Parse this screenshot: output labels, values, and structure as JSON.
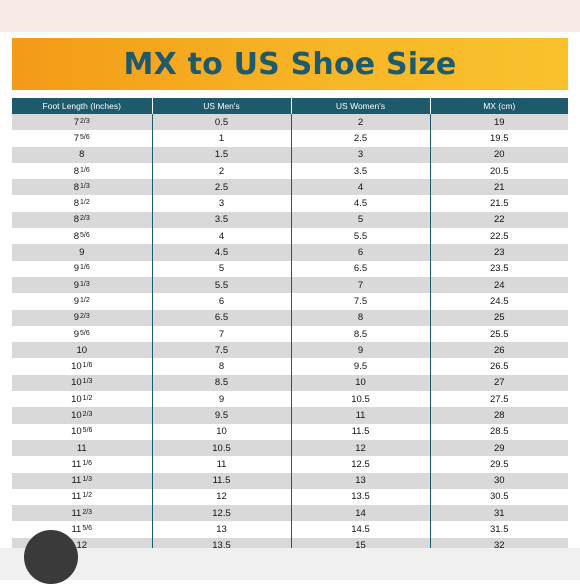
{
  "title": "MX to US Shoe Size",
  "headers": [
    "Foot Length (Inches)",
    "US Men's",
    "US Women's",
    "MX (cm)"
  ],
  "rows": [
    {
      "whole": "7",
      "frac": "2/3",
      "men": "0.5",
      "women": "2",
      "mx": "19"
    },
    {
      "whole": "7",
      "frac": "5/6",
      "men": "1",
      "women": "2.5",
      "mx": "19.5"
    },
    {
      "whole": "8",
      "frac": "",
      "men": "1.5",
      "women": "3",
      "mx": "20"
    },
    {
      "whole": "8",
      "frac": "1/6",
      "men": "2",
      "women": "3.5",
      "mx": "20.5"
    },
    {
      "whole": "8",
      "frac": "1/3",
      "men": "2.5",
      "women": "4",
      "mx": "21"
    },
    {
      "whole": "8",
      "frac": "1/2",
      "men": "3",
      "women": "4.5",
      "mx": "21.5"
    },
    {
      "whole": "8",
      "frac": "2/3",
      "men": "3.5",
      "women": "5",
      "mx": "22"
    },
    {
      "whole": "8",
      "frac": "5/6",
      "men": "4",
      "women": "5.5",
      "mx": "22.5"
    },
    {
      "whole": "9",
      "frac": "",
      "men": "4.5",
      "women": "6",
      "mx": "23"
    },
    {
      "whole": "9",
      "frac": "1/6",
      "men": "5",
      "women": "6.5",
      "mx": "23.5"
    },
    {
      "whole": "9",
      "frac": "1/3",
      "men": "5.5",
      "women": "7",
      "mx": "24"
    },
    {
      "whole": "9",
      "frac": "1/2",
      "men": "6",
      "women": "7.5",
      "mx": "24.5"
    },
    {
      "whole": "9",
      "frac": "2/3",
      "men": "6.5",
      "women": "8",
      "mx": "25"
    },
    {
      "whole": "9",
      "frac": "5/6",
      "men": "7",
      "women": "8.5",
      "mx": "25.5"
    },
    {
      "whole": "10",
      "frac": "",
      "men": "7.5",
      "women": "9",
      "mx": "26"
    },
    {
      "whole": "10",
      "frac": "1/6",
      "men": "8",
      "women": "9.5",
      "mx": "26.5"
    },
    {
      "whole": "10",
      "frac": "1/3",
      "men": "8.5",
      "women": "10",
      "mx": "27"
    },
    {
      "whole": "10",
      "frac": "1/2",
      "men": "9",
      "women": "10.5",
      "mx": "27.5"
    },
    {
      "whole": "10",
      "frac": "2/3",
      "men": "9.5",
      "women": "11",
      "mx": "28"
    },
    {
      "whole": "10",
      "frac": "5/6",
      "men": "10",
      "women": "11.5",
      "mx": "28.5"
    },
    {
      "whole": "11",
      "frac": "",
      "men": "10.5",
      "women": "12",
      "mx": "29"
    },
    {
      "whole": "11",
      "frac": "1/6",
      "men": "11",
      "women": "12.5",
      "mx": "29.5"
    },
    {
      "whole": "11",
      "frac": "1/3",
      "men": "11.5",
      "women": "13",
      "mx": "30"
    },
    {
      "whole": "11",
      "frac": "1/2",
      "men": "12",
      "women": "13.5",
      "mx": "30.5"
    },
    {
      "whole": "11",
      "frac": "2/3",
      "men": "12.5",
      "women": "14",
      "mx": "31"
    },
    {
      "whole": "11",
      "frac": "5/6",
      "men": "13",
      "women": "14.5",
      "mx": "31.5"
    },
    {
      "whole": "12",
      "frac": "",
      "men": "13.5",
      "women": "15",
      "mx": "32"
    }
  ]
}
